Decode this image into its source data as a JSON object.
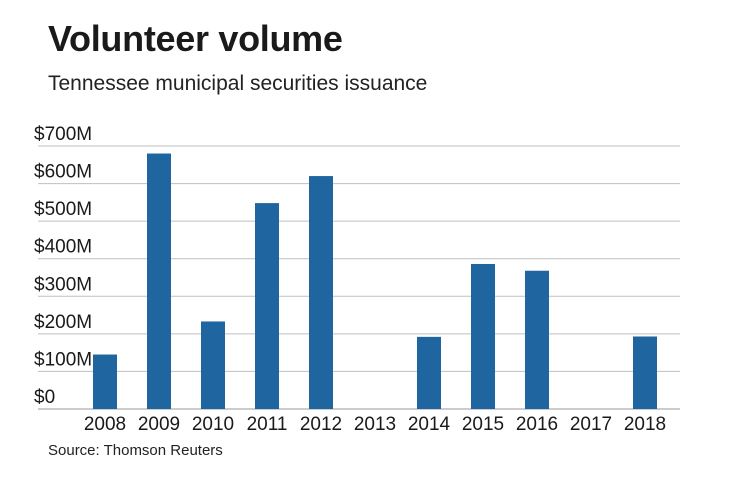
{
  "title": "Volunteer volume",
  "subtitle": "Tennessee municipal securities issuance",
  "source": "Source: Thomson Reuters",
  "chart_data": {
    "type": "bar",
    "title": "Volunteer volume",
    "subtitle": "Tennessee municipal securities issuance",
    "xlabel": "",
    "ylabel": "",
    "categories": [
      "2008",
      "2009",
      "2010",
      "2011",
      "2012",
      "2013",
      "2014",
      "2015",
      "2016",
      "2017",
      "2018"
    ],
    "values": [
      145,
      680,
      233,
      548,
      620,
      0,
      192,
      386,
      368,
      0,
      193
    ],
    "ylim": [
      0,
      700
    ],
    "yticks": [
      0,
      100,
      200,
      300,
      400,
      500,
      600,
      700
    ],
    "ytick_labels": [
      "$0",
      "$100M",
      "$200M",
      "$300M",
      "$400M",
      "$500M",
      "$600M",
      "$700M"
    ],
    "grid": true,
    "bar_color": "#1f66a0",
    "grid_color": "#bfbfbf"
  }
}
